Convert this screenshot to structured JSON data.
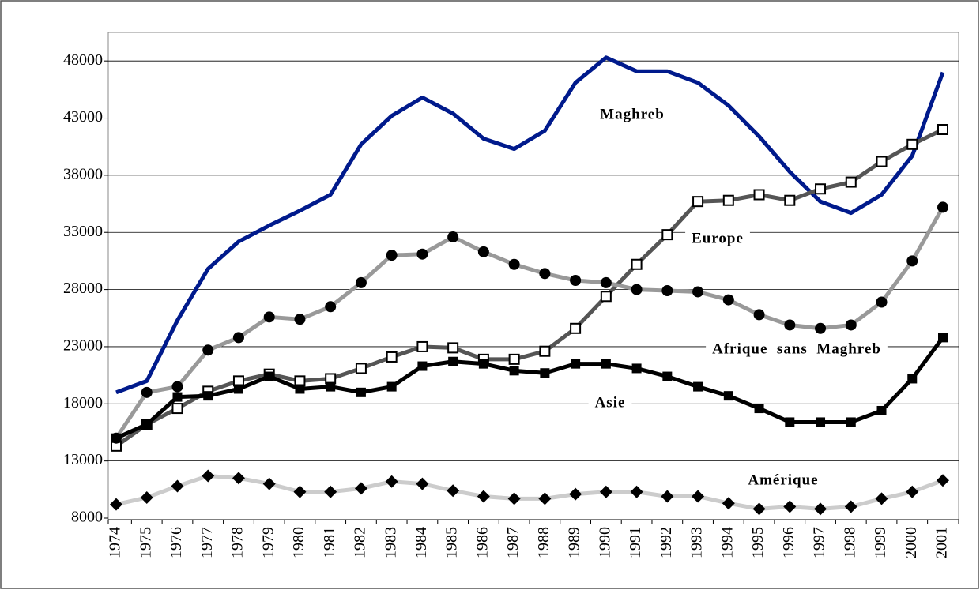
{
  "chart_data": {
    "type": "line",
    "categories": [
      "1974",
      "1975",
      "1976",
      "1977",
      "1978",
      "1979",
      "1980",
      "1981",
      "1982",
      "1983",
      "1984",
      "1985",
      "1986",
      "1987",
      "1988",
      "1989",
      "1990",
      "1991",
      "1992",
      "1993",
      "1994",
      "1995",
      "1996",
      "1997",
      "1998",
      "1999",
      "2000",
      "2001"
    ],
    "series": [
      {
        "name": "Maghreb",
        "color": "#001a8c",
        "marker": "none",
        "values": [
          19000,
          20000,
          25300,
          29800,
          32200,
          33600,
          34900,
          36300,
          40700,
          43200,
          44800,
          43400,
          41200,
          40300,
          41900,
          46100,
          48300,
          47100,
          47100,
          46100,
          44100,
          41400,
          38300,
          35700,
          34700,
          36300,
          39700,
          47000
        ]
      },
      {
        "name": "Europe",
        "color": "#555555",
        "marker": "square-open",
        "values": [
          14300,
          16200,
          17600,
          19100,
          20000,
          20600,
          20000,
          20200,
          21100,
          22100,
          23000,
          22900,
          21900,
          21900,
          22600,
          24600,
          27400,
          30200,
          32800,
          35700,
          35800,
          36300,
          35800,
          36800,
          37400,
          39200,
          40700,
          42000
        ]
      },
      {
        "name": "Afrique  sans  Maghreb",
        "color": "#999999",
        "marker": "circle",
        "values": [
          15000,
          19000,
          19500,
          22700,
          23800,
          25600,
          25400,
          26500,
          28600,
          31000,
          31100,
          32600,
          31300,
          30200,
          29400,
          28800,
          28600,
          28000,
          27900,
          27800,
          27100,
          25800,
          24900,
          24600,
          24900,
          26900,
          30500,
          35200
        ]
      },
      {
        "name": "Asie",
        "color": "#000000",
        "marker": "square",
        "values": [
          15000,
          16200,
          18600,
          18700,
          19300,
          20400,
          19300,
          19500,
          19000,
          19500,
          21300,
          21700,
          21500,
          20900,
          20700,
          21500,
          21500,
          21100,
          20400,
          19500,
          18700,
          17600,
          16400,
          16400,
          16400,
          17400,
          20200,
          23800
        ]
      },
      {
        "name": "Amérique",
        "color": "#cccccc",
        "marker": "diamond",
        "values": [
          9200,
          9800,
          10800,
          11700,
          11500,
          11000,
          10300,
          10300,
          10600,
          11200,
          11000,
          10400,
          9900,
          9700,
          9700,
          10100,
          10300,
          10300,
          9900,
          9900,
          9300,
          8800,
          9000,
          8800,
          9000,
          9700,
          10300,
          11300
        ]
      }
    ],
    "ylim": [
      8000,
      50500
    ],
    "yticks": [
      8000,
      13000,
      18000,
      23000,
      28000,
      33000,
      38000,
      43000,
      48000
    ],
    "grid": true
  }
}
